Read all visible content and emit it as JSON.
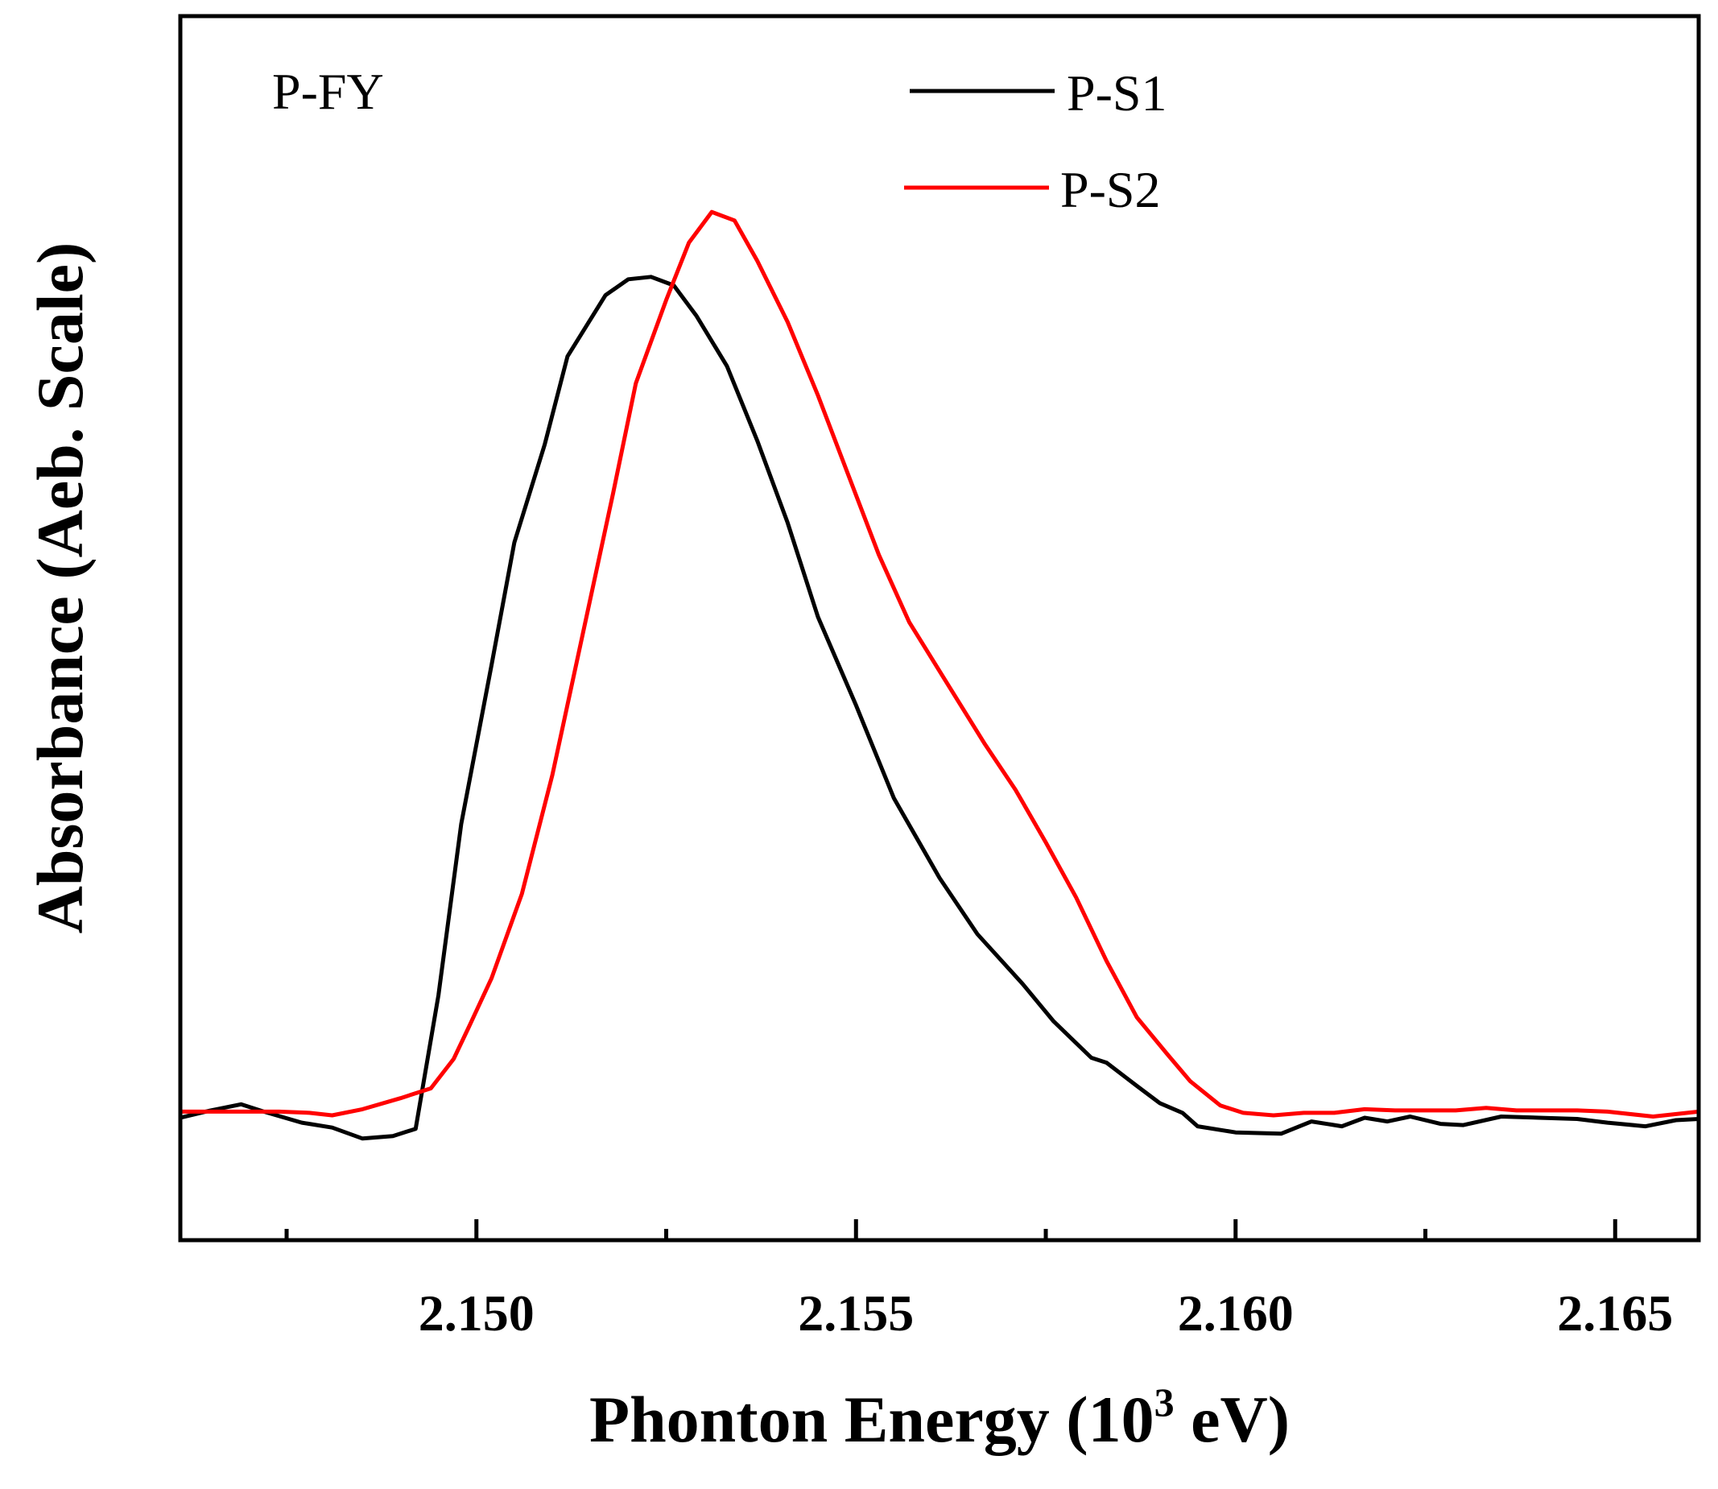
{
  "chart_data": {
    "type": "line",
    "title": "",
    "annotation": "P-FY",
    "xlabel_prefix": "Phonton Energy (10",
    "xlabel_sup": "3",
    "xlabel_suffix": " eV)",
    "ylabel": "Absorbance (Aeb.  Scale)",
    "xlim": [
      2.1461,
      2.1661
    ],
    "ylim": [
      0,
      1.0
    ],
    "x_ticks": [
      2.15,
      2.155,
      2.16,
      2.165
    ],
    "x_tick_labels": [
      "2.150",
      "2.155",
      "2.160",
      "2.165"
    ],
    "x_minor_ticks": [
      2.1475,
      2.1525,
      2.1575,
      2.1625
    ],
    "grid": false,
    "legend_position": "top-right",
    "series": [
      {
        "name": "P-S1",
        "color": "#000000",
        "x": [
          2.1461,
          2.1465,
          2.1469,
          2.1472,
          2.1477,
          2.1481,
          2.1485,
          2.1489,
          2.1492,
          2.1495,
          2.1498,
          2.1502,
          2.1505,
          2.1509,
          2.1512,
          2.1517,
          2.152,
          2.1523,
          2.1526,
          2.1529,
          2.1533,
          2.1537,
          2.1541,
          2.1545,
          2.155,
          2.1555,
          2.1561,
          2.1566,
          2.1572,
          2.1576,
          2.1581,
          2.1583,
          2.1587,
          2.159,
          2.1593,
          2.1595,
          2.16,
          2.1606,
          2.161,
          2.1614,
          2.1617,
          2.162,
          2.1623,
          2.1627,
          2.163,
          2.1635,
          2.164,
          2.1645,
          2.1649,
          2.1654,
          2.1658,
          2.1661
        ],
        "y": [
          0.1,
          0.106,
          0.111,
          0.105,
          0.096,
          0.092,
          0.083,
          0.085,
          0.091,
          0.2,
          0.34,
          0.47,
          0.57,
          0.65,
          0.722,
          0.772,
          0.785,
          0.787,
          0.78,
          0.755,
          0.714,
          0.653,
          0.586,
          0.509,
          0.437,
          0.361,
          0.296,
          0.25,
          0.209,
          0.179,
          0.149,
          0.145,
          0.126,
          0.112,
          0.104,
          0.093,
          0.088,
          0.087,
          0.097,
          0.093,
          0.1,
          0.097,
          0.101,
          0.095,
          0.094,
          0.101,
          0.1,
          0.099,
          0.096,
          0.093,
          0.098,
          0.099
        ]
      },
      {
        "name": "P-S2",
        "color": "#ff0000",
        "x": [
          2.1461,
          2.1466,
          2.147,
          2.1474,
          2.1478,
          2.1481,
          2.1485,
          2.149,
          2.1494,
          2.1497,
          2.1499,
          2.1502,
          2.1506,
          2.151,
          2.1514,
          2.1518,
          2.1521,
          2.1525,
          2.1528,
          2.1531,
          2.1534,
          2.1537,
          2.1541,
          2.1545,
          2.1549,
          2.1553,
          2.1557,
          2.1562,
          2.1567,
          2.1571,
          2.1575,
          2.1579,
          2.1583,
          2.1587,
          2.1591,
          2.1594,
          2.1598,
          2.1601,
          2.1605,
          2.1609,
          2.1613,
          2.1617,
          2.1621,
          2.1625,
          2.1629,
          2.1633,
          2.1637,
          2.1641,
          2.1645,
          2.1649,
          2.1655,
          2.1661
        ],
        "y": [
          0.105,
          0.105,
          0.105,
          0.105,
          0.104,
          0.102,
          0.107,
          0.116,
          0.124,
          0.148,
          0.174,
          0.214,
          0.283,
          0.38,
          0.495,
          0.61,
          0.7,
          0.768,
          0.815,
          0.84,
          0.833,
          0.8,
          0.75,
          0.69,
          0.625,
          0.56,
          0.505,
          0.455,
          0.405,
          0.368,
          0.325,
          0.28,
          0.228,
          0.182,
          0.152,
          0.13,
          0.11,
          0.104,
          0.102,
          0.104,
          0.104,
          0.107,
          0.106,
          0.106,
          0.106,
          0.108,
          0.106,
          0.106,
          0.106,
          0.105,
          0.101,
          0.105
        ]
      }
    ]
  }
}
